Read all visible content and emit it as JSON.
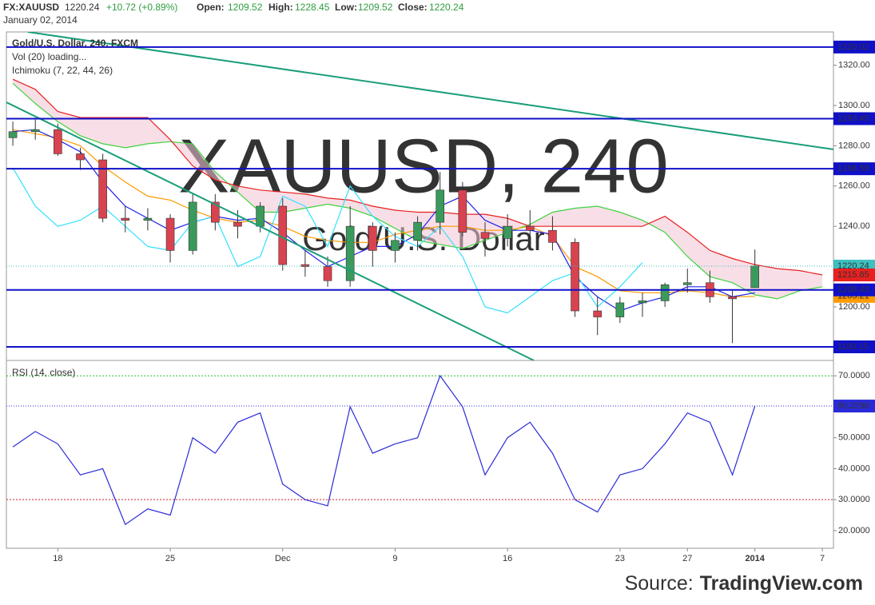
{
  "header": {
    "symbol": "FX:XAUUSD",
    "last": "1220.24",
    "change": "+10.72 (+0.89%)",
    "open_label": "Open:",
    "open": "1209.52",
    "high_label": "High:",
    "high": "1228.45",
    "low_label": "Low:",
    "low": "1209.52",
    "close_label": "Close:",
    "close": "1220.24",
    "date": "January 02, 2014"
  },
  "source": {
    "prefix": "Source:",
    "brand": "TradingView.com"
  },
  "chart_data": [
    {
      "type": "candlestick",
      "title": "Gold/U.S. Dollar, 240, FXCM",
      "indicators": [
        "Vol (20) loading...",
        "Ichimoku (7, 22, 44, 26)"
      ],
      "watermark": "XAUUSD, 240",
      "watermark_subtitle": "Gold/U.S. Dollar",
      "categories": [
        null,
        null,
        "18",
        null,
        null,
        null,
        null,
        "25",
        null,
        null,
        null,
        null,
        "Dec",
        null,
        null,
        null,
        null,
        "9",
        null,
        null,
        null,
        null,
        "16",
        null,
        null,
        null,
        null,
        "23",
        null,
        null,
        "27",
        null,
        null,
        "2014",
        null,
        null,
        "7"
      ],
      "open": [
        1284,
        1287,
        1288,
        1276,
        1273,
        1244,
        1243,
        1244,
        1228,
        1252,
        1242,
        1240,
        1250,
        1221,
        1220,
        1213,
        1240,
        1228,
        1233,
        1242,
        1258,
        1237,
        1234,
        1240,
        1238,
        1232,
        1198,
        1195,
        1202,
        1203,
        1211,
        1212,
        1205,
        1209.52,
        null,
        null,
        null
      ],
      "high": [
        1292,
        1293,
        1291,
        1279,
        1276,
        1250,
        1249,
        1246,
        1256,
        1256,
        1248,
        1252,
        1254,
        1228,
        1225,
        1250,
        1242,
        1237,
        1245,
        1267,
        1262,
        1242,
        1246,
        1248,
        1245,
        1234,
        1205,
        1205,
        1207,
        1212,
        1219,
        1218,
        1208,
        1228.45,
        null,
        null,
        null
      ],
      "low": [
        1280,
        1283,
        1275,
        1268,
        1242,
        1237,
        1238,
        1222,
        1226,
        1238,
        1234,
        1237,
        1218,
        1215,
        1210,
        1210,
        1220,
        1222,
        1228,
        1236,
        1235,
        1225,
        1230,
        1235,
        1228,
        1195,
        1186,
        1192,
        1195,
        1200,
        1207,
        1202,
        1182,
        1209.52,
        null,
        null,
        null
      ],
      "close": [
        1287,
        1288,
        1276,
        1273,
        1244,
        1243,
        1244,
        1228,
        1252,
        1242,
        1240,
        1250,
        1221,
        1220,
        1213,
        1240,
        1228,
        1233,
        1242,
        1258,
        1237,
        1234,
        1240,
        1238,
        1232,
        1198,
        1195,
        1202,
        1203,
        1211,
        1212,
        1205,
        1204,
        1220.24,
        null,
        null,
        null
      ],
      "up_color": "#3a9a5c",
      "down_color": "#d8434f",
      "last_color": "#3cc0c0",
      "series": [
        {
          "color": "#3fd33f",
          "values": [
            1311,
            1301,
            1292,
            1285,
            1281,
            1279,
            1281,
            1282,
            1281,
            1267,
            1257,
            1247,
            1247,
            1249,
            1251,
            1249,
            1245,
            1239,
            1233,
            1231,
            1229,
            1233,
            1237,
            1241,
            1247,
            1249,
            1250,
            1247,
            1243,
            1237,
            1225,
            1215,
            1212,
            1206,
            1204,
            1208,
            1210
          ]
        },
        {
          "color": "#e82020",
          "label_last": true,
          "values": [
            1313,
            1308,
            1297,
            1294,
            1294,
            1294,
            1294,
            1283,
            1270,
            1263,
            1260,
            1258,
            1257,
            1256,
            1254,
            1253,
            1250,
            1248,
            1247,
            1247,
            1246,
            1246,
            1244,
            1240,
            1240,
            1240,
            1240,
            1240,
            1240,
            1245,
            1237,
            1228,
            1224,
            1221,
            1219,
            1218,
            1215.85
          ]
        },
        {
          "color": "#ff9a00",
          "label_last": true,
          "values": [
            1288,
            1286,
            1284,
            1280,
            1270,
            1262,
            1255,
            1253,
            1248,
            1244,
            1242,
            1243,
            1240,
            1235,
            1233,
            1232,
            1232,
            1236,
            1238,
            1240,
            1240,
            1238,
            1238,
            1240,
            1235,
            1220,
            1215,
            1208,
            1207,
            1207,
            1208,
            1207,
            1205,
            1205.21,
            null,
            null,
            null
          ]
        },
        {
          "color": "#1e22e8",
          "values": [
            1287,
            1288,
            1283,
            1277,
            1262,
            1250,
            1244,
            1238,
            1242,
            1245,
            1243,
            1244,
            1237,
            1228,
            1220,
            1225,
            1230,
            1230,
            1236,
            1250,
            1255,
            1243,
            1238,
            1238,
            1236,
            1215,
            1205,
            1198,
            1202,
            1205,
            1210,
            1210,
            1205,
            1207,
            null,
            null,
            null
          ]
        },
        {
          "color": "#33e0ff",
          "values": [
            1269,
            1250,
            1240,
            1243,
            1250,
            1240,
            1230,
            1228,
            1242,
            1245,
            1220,
            1225,
            1255,
            1250,
            1230,
            1260,
            1245,
            1235,
            1230,
            1240,
            1225,
            1200,
            1197,
            1205,
            1213,
            1217,
            1200,
            1210,
            1222,
            null,
            null,
            null,
            null,
            null,
            null,
            null,
            null
          ]
        }
      ],
      "cloud_color": "#f3c4d4",
      "levels": [
        1329.02,
        1293.45,
        1268.58,
        1208.43,
        1180.15
      ],
      "level_color": "#1010c8",
      "trendlines": [
        {
          "x": [
            0.67,
            36.5
          ],
          "y": [
            1336.5,
            1278.2
          ]
        },
        {
          "x": [
            -0.29,
            23.17
          ],
          "y": [
            1301.6,
            1173.4
          ]
        }
      ],
      "trendline_color": "#1a9e7a",
      "ylim": [
        1173.4,
        1336.5
      ],
      "yticks": [
        {
          "value": 1200,
          "label": "1200.00"
        },
        {
          "value": 1240,
          "label": "1240.00"
        },
        {
          "value": 1260,
          "label": "1260.00"
        },
        {
          "value": 1280,
          "label": "1280.00"
        },
        {
          "value": 1300,
          "label": "1300.00"
        },
        {
          "value": 1320,
          "label": "1320.00"
        }
      ]
    },
    {
      "type": "line",
      "title": "RSI (14, close)",
      "series": [
        {
          "color": "#2a2ad8",
          "label_last": true,
          "values": [
            47,
            52,
            48,
            38,
            40,
            22,
            27,
            25,
            50,
            45,
            55,
            58,
            35,
            30,
            28,
            60,
            45,
            48,
            50,
            70,
            60,
            38,
            50,
            55,
            45,
            30,
            26,
            38,
            40,
            48,
            58,
            55,
            38,
            60.2298
          ]
        }
      ],
      "levels": [
        {
          "value": 70,
          "color": "#2cb82c"
        },
        {
          "value": 30,
          "color": "#d02020"
        }
      ],
      "ylim": [
        14.3,
        74.7
      ],
      "yticks": [
        {
          "value": 20,
          "label": "20.0000"
        },
        {
          "value": 30,
          "label": "30.0000"
        },
        {
          "value": 40,
          "label": "40.0000"
        },
        {
          "value": 50,
          "label": "50.0000"
        },
        {
          "value": 60,
          "label": "60.0000"
        },
        {
          "value": 70,
          "label": "70.0000"
        }
      ]
    }
  ]
}
